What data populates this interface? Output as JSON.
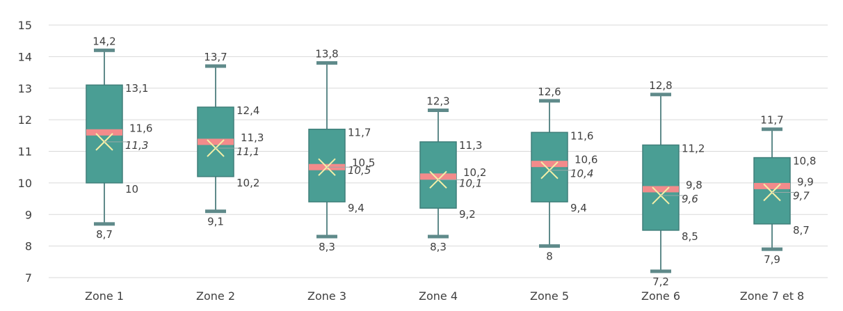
{
  "chart_data": {
    "type": "boxplot",
    "title": "",
    "xlabel": "",
    "ylabel": "",
    "ylim": [
      7,
      15
    ],
    "yticks": [
      "7",
      "8",
      "9",
      "10",
      "11",
      "12",
      "13",
      "14",
      "15"
    ],
    "grid": true,
    "categories": [
      "Zone 1",
      "Zone 2",
      "Zone 3",
      "Zone 4",
      "Zone 5",
      "Zone 6",
      "Zone 7 et 8"
    ],
    "boxes": [
      {
        "min": 8.7,
        "q1": 10.0,
        "median": 11.6,
        "q3": 13.1,
        "max": 14.2,
        "mean": 11.3,
        "labels": {
          "min": "8,7",
          "q1": "10",
          "median": "11,6",
          "q3": "13,1",
          "max": "14,2",
          "mean": "11,3"
        }
      },
      {
        "min": 9.1,
        "q1": 10.2,
        "median": 11.3,
        "q3": 12.4,
        "max": 13.7,
        "mean": 11.1,
        "labels": {
          "min": "9,1",
          "q1": "10,2",
          "median": "11,3",
          "q3": "12,4",
          "max": "13,7",
          "mean": "11,1"
        }
      },
      {
        "min": 8.3,
        "q1": 9.4,
        "median": 10.5,
        "q3": 11.7,
        "max": 13.8,
        "mean": 10.5,
        "labels": {
          "min": "8,3",
          "q1": "9,4",
          "median": "10,5",
          "q3": "11,7",
          "max": "13,8",
          "mean": "10,5"
        }
      },
      {
        "min": 8.3,
        "q1": 9.2,
        "median": 10.2,
        "q3": 11.3,
        "max": 12.3,
        "mean": 10.1,
        "labels": {
          "min": "8,3",
          "q1": "9,2",
          "median": "10,2",
          "q3": "11,3",
          "max": "12,3",
          "mean": "10,1"
        }
      },
      {
        "min": 8.0,
        "q1": 9.4,
        "median": 10.6,
        "q3": 11.6,
        "max": 12.6,
        "mean": 10.4,
        "labels": {
          "min": "8",
          "q1": "9,4",
          "median": "10,6",
          "q3": "11,6",
          "max": "12,6",
          "mean": "10,4"
        }
      },
      {
        "min": 7.2,
        "q1": 8.5,
        "median": 9.8,
        "q3": 11.2,
        "max": 12.8,
        "mean": 9.6,
        "labels": {
          "min": "7,2",
          "q1": "8,5",
          "median": "9,8",
          "q3": "11,2",
          "max": "12,8",
          "mean": "9,6"
        }
      },
      {
        "min": 7.9,
        "q1": 8.7,
        "median": 9.9,
        "q3": 10.8,
        "max": 11.7,
        "mean": 9.7,
        "labels": {
          "min": "7,9",
          "q1": "8,7",
          "median": "9,9",
          "q3": "10,8",
          "max": "11,7",
          "mean": "9,7"
        }
      }
    ],
    "colors": {
      "box": "#4a9e94",
      "box_edge": "#3f7f7a",
      "whisker": "#5f8a8a",
      "median": "#f38b8b",
      "mean_marker": "#f5f0a8",
      "grid": "#d9d9d9",
      "text": "#404040"
    }
  }
}
